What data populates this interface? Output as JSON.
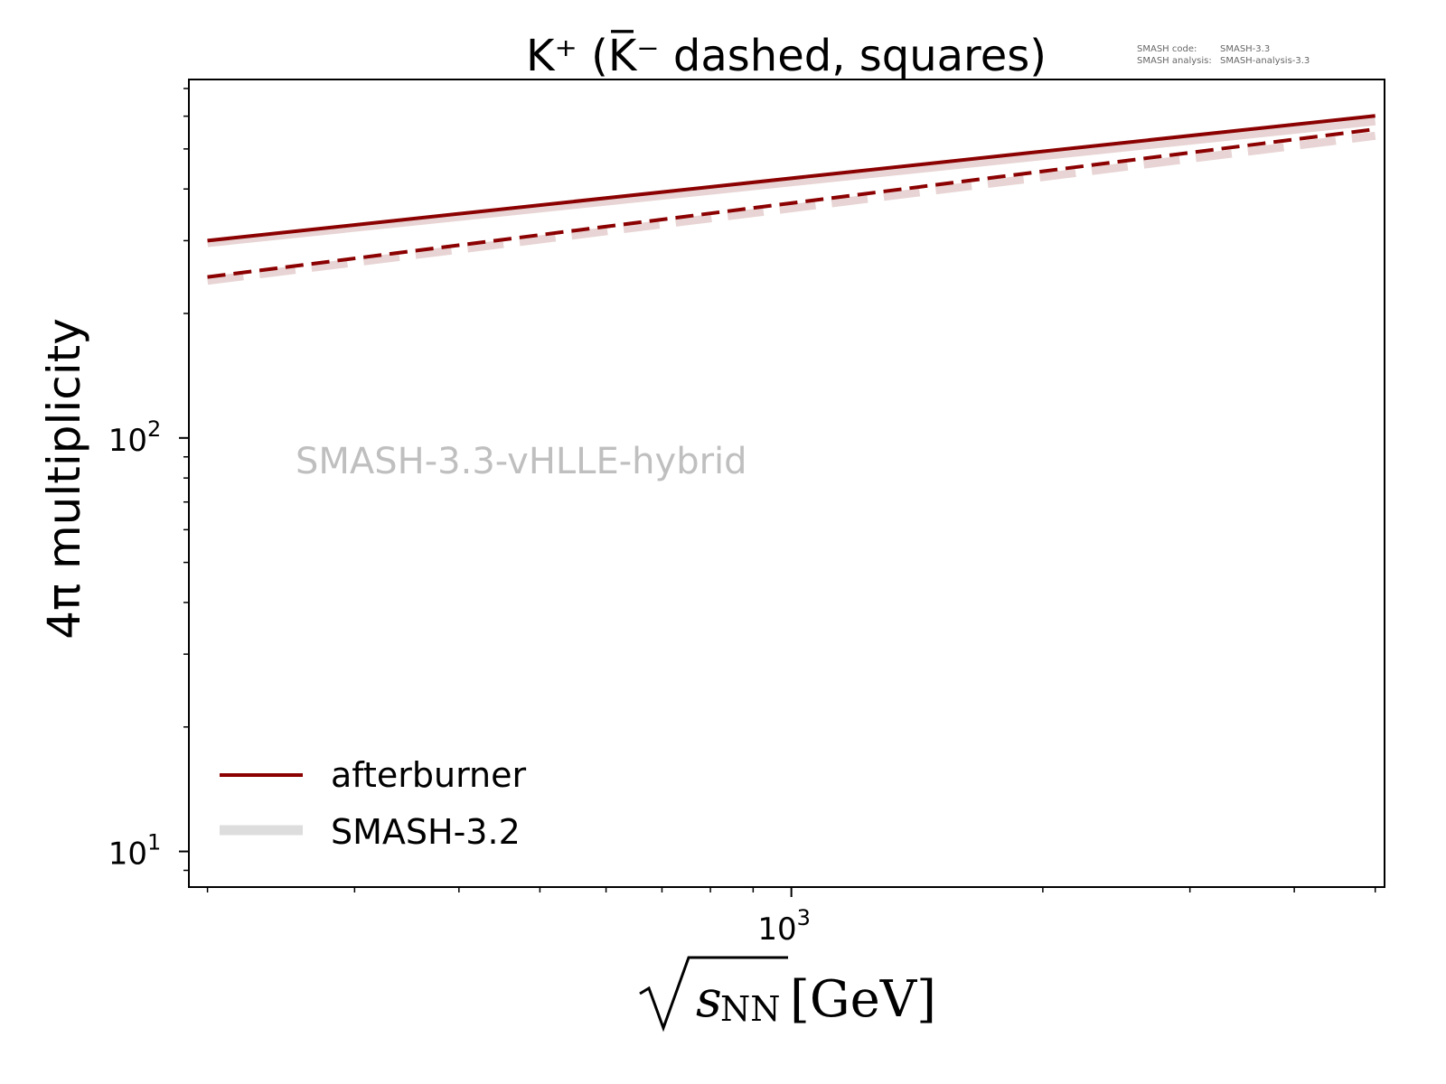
{
  "chart_data": {
    "type": "line",
    "title": "K⁺ (K̅⁻ dashed, squares)",
    "xlabel": "√sNN [GeV]",
    "xlabel_parts": {
      "sqrt": "√",
      "var": "s",
      "sub": "NN",
      "unit": "[GeV]"
    },
    "ylabel": "4π multiplicity",
    "xscale": "log",
    "yscale": "log",
    "xlim": [
      190,
      5130
    ],
    "ylim": [
      8.2,
      736
    ],
    "x_major_ticks": [
      {
        "value": 1000,
        "base": "10",
        "exp": "3"
      }
    ],
    "x_minor_ticks": [
      200,
      300,
      400,
      500,
      600,
      700,
      800,
      900,
      2000,
      3000,
      4000,
      5000
    ],
    "y_major_ticks": [
      {
        "value": 10,
        "base": "10",
        "exp": "1"
      },
      {
        "value": 100,
        "base": "10",
        "exp": "2"
      }
    ],
    "y_minor_ticks": [
      9,
      20,
      30,
      40,
      50,
      60,
      70,
      80,
      90,
      200,
      300,
      400,
      500,
      600,
      700
    ],
    "grid": false,
    "series": [
      {
        "name": "SMASH-3.2",
        "particle": "K+",
        "style": "solid",
        "color": "#e8d4d4",
        "x": [
          200,
          5000
        ],
        "y": [
          296,
          583
        ]
      },
      {
        "name": "SMASH-3.2",
        "particle": "K-",
        "style": "dashed",
        "color": "#e8d4d4",
        "x": [
          200,
          5000
        ],
        "y": [
          240,
          538
        ]
      },
      {
        "name": "afterburner",
        "particle": "K+",
        "style": "solid",
        "color": "#8b0000",
        "x": [
          200,
          5000
        ],
        "y": [
          300,
          601
        ]
      },
      {
        "name": "afterburner",
        "particle": "K-",
        "style": "dashed",
        "color": "#8b0000",
        "x": [
          200,
          5000
        ],
        "y": [
          245,
          558
        ]
      }
    ],
    "legend": {
      "placement": "lower-left",
      "entries": [
        {
          "label": "afterburner",
          "color": "#8b0000"
        },
        {
          "label": "SMASH-3.2",
          "color": "#dddddd"
        }
      ]
    },
    "annotation": "SMASH-3.3-vHLLE-hybrid",
    "meta": {
      "code_label": "SMASH code:",
      "code_value": "SMASH-3.3",
      "analysis_label": "SMASH analysis:",
      "analysis_value": "SMASH-analysis-3.3"
    }
  }
}
